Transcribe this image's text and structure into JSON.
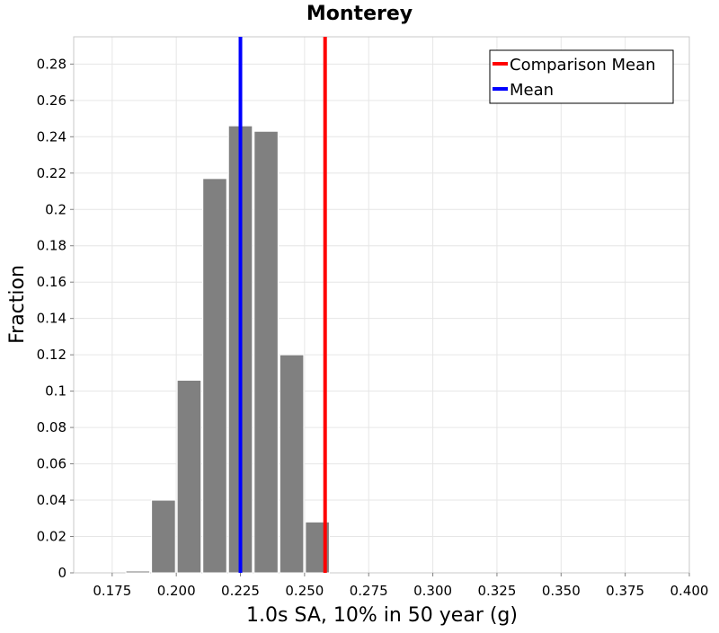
{
  "chart_data": {
    "type": "bar",
    "title": "Monterey",
    "xlabel": "1.0s SA, 10% in 50 year (g)",
    "ylabel": "Fraction",
    "xlim": [
      0.16,
      0.4
    ],
    "ylim": [
      0,
      0.295
    ],
    "grid": true,
    "legend_position": "top-right",
    "x_ticks": [
      "0.175",
      "0.200",
      "0.225",
      "0.250",
      "0.275",
      "0.300",
      "0.325",
      "0.350",
      "0.375",
      "0.400"
    ],
    "y_ticks": [
      "0",
      "0.02",
      "0.04",
      "0.06",
      "0.08",
      "0.1",
      "0.12",
      "0.14",
      "0.16",
      "0.18",
      "0.2",
      "0.22",
      "0.24",
      "0.26",
      "0.28"
    ],
    "bin_width": 0.01,
    "bins": [
      {
        "center": 0.185,
        "value": 0.001
      },
      {
        "center": 0.195,
        "value": 0.04
      },
      {
        "center": 0.205,
        "value": 0.106
      },
      {
        "center": 0.215,
        "value": 0.217
      },
      {
        "center": 0.225,
        "value": 0.246
      },
      {
        "center": 0.235,
        "value": 0.243
      },
      {
        "center": 0.245,
        "value": 0.12
      },
      {
        "center": 0.255,
        "value": 0.028
      }
    ],
    "bar_color": "#808080",
    "reference_lines": [
      {
        "name": "Comparison Mean",
        "x": 0.258,
        "color": "#ff0000"
      },
      {
        "name": "Mean",
        "x": 0.225,
        "color": "#0000ff"
      }
    ]
  }
}
